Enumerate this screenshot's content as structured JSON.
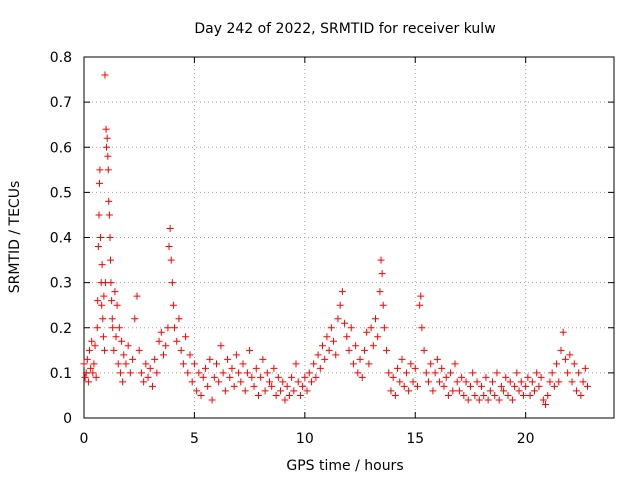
{
  "chart_data": {
    "type": "scatter",
    "title": "Day 242 of 2022, SRMTID for receiver kulw",
    "xlabel": "GPS time / hours",
    "ylabel": "SRMTID / TECUs",
    "xlim": [
      0,
      24
    ],
    "ylim": [
      0,
      0.8
    ],
    "xticks": [
      0,
      5,
      10,
      15,
      20
    ],
    "xtick_labels": [
      "0",
      "5",
      "10",
      "15",
      "20"
    ],
    "yticks": [
      0,
      0.1,
      0.2,
      0.3,
      0.4,
      0.5,
      0.6,
      0.7,
      0.8
    ],
    "ytick_labels": [
      "0",
      "0.1",
      "0.2",
      "0.3",
      "0.4",
      "0.5",
      "0.6",
      "0.7",
      "0.8"
    ],
    "grid": true,
    "marker": "+",
    "color": "#ff0000",
    "series": [
      {
        "name": "SRMTID",
        "points": [
          [
            0.0,
            0.12
          ],
          [
            0.05,
            0.09
          ],
          [
            0.1,
            0.1
          ],
          [
            0.15,
            0.13
          ],
          [
            0.2,
            0.08
          ],
          [
            0.25,
            0.15
          ],
          [
            0.3,
            0.11
          ],
          [
            0.35,
            0.17
          ],
          [
            0.4,
            0.1
          ],
          [
            0.45,
            0.12
          ],
          [
            0.5,
            0.16
          ],
          [
            0.55,
            0.09
          ],
          [
            0.6,
            0.2
          ],
          [
            0.62,
            0.26
          ],
          [
            0.65,
            0.38
          ],
          [
            0.68,
            0.45
          ],
          [
            0.7,
            0.52
          ],
          [
            0.72,
            0.55
          ],
          [
            0.75,
            0.4
          ],
          [
            0.78,
            0.3
          ],
          [
            0.8,
            0.25
          ],
          [
            0.82,
            0.34
          ],
          [
            0.85,
            0.22
          ],
          [
            0.88,
            0.18
          ],
          [
            0.9,
            0.27
          ],
          [
            0.93,
            0.15
          ],
          [
            0.95,
            0.76
          ],
          [
            0.97,
            0.3
          ],
          [
            1.0,
            0.64
          ],
          [
            1.02,
            0.6
          ],
          [
            1.05,
            0.62
          ],
          [
            1.08,
            0.58
          ],
          [
            1.1,
            0.55
          ],
          [
            1.12,
            0.48
          ],
          [
            1.15,
            0.45
          ],
          [
            1.18,
            0.4
          ],
          [
            1.2,
            0.35
          ],
          [
            1.22,
            0.3
          ],
          [
            1.25,
            0.26
          ],
          [
            1.28,
            0.22
          ],
          [
            1.3,
            0.2
          ],
          [
            1.35,
            0.15
          ],
          [
            1.4,
            0.28
          ],
          [
            1.45,
            0.18
          ],
          [
            1.5,
            0.25
          ],
          [
            1.55,
            0.12
          ],
          [
            1.6,
            0.2
          ],
          [
            1.65,
            0.1
          ],
          [
            1.7,
            0.17
          ],
          [
            1.75,
            0.08
          ],
          [
            1.8,
            0.14
          ],
          [
            1.9,
            0.12
          ],
          [
            2.0,
            0.16
          ],
          [
            2.1,
            0.1
          ],
          [
            2.2,
            0.13
          ],
          [
            2.3,
            0.22
          ],
          [
            2.4,
            0.27
          ],
          [
            2.5,
            0.15
          ],
          [
            2.6,
            0.1
          ],
          [
            2.7,
            0.08
          ],
          [
            2.8,
            0.12
          ],
          [
            2.9,
            0.09
          ],
          [
            3.0,
            0.11
          ],
          [
            3.1,
            0.07
          ],
          [
            3.2,
            0.13
          ],
          [
            3.3,
            0.1
          ],
          [
            3.4,
            0.17
          ],
          [
            3.5,
            0.19
          ],
          [
            3.6,
            0.14
          ],
          [
            3.7,
            0.16
          ],
          [
            3.8,
            0.2
          ],
          [
            3.85,
            0.38
          ],
          [
            3.9,
            0.42
          ],
          [
            3.95,
            0.35
          ],
          [
            4.0,
            0.3
          ],
          [
            4.05,
            0.25
          ],
          [
            4.1,
            0.2
          ],
          [
            4.2,
            0.17
          ],
          [
            4.3,
            0.22
          ],
          [
            4.4,
            0.15
          ],
          [
            4.5,
            0.12
          ],
          [
            4.6,
            0.18
          ],
          [
            4.7,
            0.1
          ],
          [
            4.8,
            0.14
          ],
          [
            4.9,
            0.08
          ],
          [
            5.0,
            0.12
          ],
          [
            5.1,
            0.06
          ],
          [
            5.2,
            0.1
          ],
          [
            5.3,
            0.05
          ],
          [
            5.4,
            0.09
          ],
          [
            5.5,
            0.11
          ],
          [
            5.6,
            0.07
          ],
          [
            5.7,
            0.13
          ],
          [
            5.8,
            0.04
          ],
          [
            5.9,
            0.09
          ],
          [
            6.0,
            0.12
          ],
          [
            6.1,
            0.08
          ],
          [
            6.2,
            0.16
          ],
          [
            6.3,
            0.1
          ],
          [
            6.4,
            0.06
          ],
          [
            6.5,
            0.13
          ],
          [
            6.6,
            0.09
          ],
          [
            6.7,
            0.11
          ],
          [
            6.8,
            0.07
          ],
          [
            6.9,
            0.14
          ],
          [
            7.0,
            0.1
          ],
          [
            7.1,
            0.08
          ],
          [
            7.2,
            0.12
          ],
          [
            7.3,
            0.06
          ],
          [
            7.4,
            0.1
          ],
          [
            7.5,
            0.15
          ],
          [
            7.6,
            0.09
          ],
          [
            7.7,
            0.07
          ],
          [
            7.8,
            0.11
          ],
          [
            7.9,
            0.05
          ],
          [
            8.0,
            0.09
          ],
          [
            8.1,
            0.13
          ],
          [
            8.2,
            0.06
          ],
          [
            8.3,
            0.1
          ],
          [
            8.4,
            0.08
          ],
          [
            8.5,
            0.07
          ],
          [
            8.6,
            0.11
          ],
          [
            8.7,
            0.05
          ],
          [
            8.8,
            0.09
          ],
          [
            8.9,
            0.06
          ],
          [
            9.0,
            0.08
          ],
          [
            9.1,
            0.04
          ],
          [
            9.2,
            0.07
          ],
          [
            9.3,
            0.05
          ],
          [
            9.4,
            0.09
          ],
          [
            9.5,
            0.06
          ],
          [
            9.6,
            0.12
          ],
          [
            9.7,
            0.08
          ],
          [
            9.8,
            0.05
          ],
          [
            9.9,
            0.07
          ],
          [
            10.0,
            0.09
          ],
          [
            10.1,
            0.06
          ],
          [
            10.2,
            0.1
          ],
          [
            10.3,
            0.08
          ],
          [
            10.4,
            0.12
          ],
          [
            10.5,
            0.09
          ],
          [
            10.6,
            0.14
          ],
          [
            10.7,
            0.11
          ],
          [
            10.8,
            0.16
          ],
          [
            10.9,
            0.13
          ],
          [
            11.0,
            0.18
          ],
          [
            11.1,
            0.15
          ],
          [
            11.2,
            0.2
          ],
          [
            11.3,
            0.17
          ],
          [
            11.4,
            0.14
          ],
          [
            11.5,
            0.22
          ],
          [
            11.6,
            0.25
          ],
          [
            11.7,
            0.28
          ],
          [
            11.8,
            0.21
          ],
          [
            11.9,
            0.18
          ],
          [
            12.0,
            0.15
          ],
          [
            12.1,
            0.2
          ],
          [
            12.2,
            0.12
          ],
          [
            12.3,
            0.16
          ],
          [
            12.4,
            0.1
          ],
          [
            12.5,
            0.13
          ],
          [
            12.6,
            0.09
          ],
          [
            12.7,
            0.15
          ],
          [
            12.8,
            0.19
          ],
          [
            12.9,
            0.12
          ],
          [
            13.0,
            0.2
          ],
          [
            13.1,
            0.16
          ],
          [
            13.2,
            0.22
          ],
          [
            13.3,
            0.18
          ],
          [
            13.4,
            0.28
          ],
          [
            13.45,
            0.35
          ],
          [
            13.5,
            0.32
          ],
          [
            13.55,
            0.25
          ],
          [
            13.6,
            0.2
          ],
          [
            13.7,
            0.15
          ],
          [
            13.8,
            0.1
          ],
          [
            13.9,
            0.06
          ],
          [
            14.0,
            0.09
          ],
          [
            14.1,
            0.05
          ],
          [
            14.2,
            0.11
          ],
          [
            14.3,
            0.08
          ],
          [
            14.4,
            0.13
          ],
          [
            14.5,
            0.07
          ],
          [
            14.6,
            0.1
          ],
          [
            14.7,
            0.06
          ],
          [
            14.8,
            0.12
          ],
          [
            14.9,
            0.08
          ],
          [
            15.0,
            0.11
          ],
          [
            15.1,
            0.07
          ],
          [
            15.2,
            0.25
          ],
          [
            15.25,
            0.27
          ],
          [
            15.3,
            0.2
          ],
          [
            15.4,
            0.15
          ],
          [
            15.5,
            0.1
          ],
          [
            15.6,
            0.08
          ],
          [
            15.7,
            0.12
          ],
          [
            15.8,
            0.06
          ],
          [
            15.9,
            0.1
          ],
          [
            16.0,
            0.13
          ],
          [
            16.1,
            0.08
          ],
          [
            16.2,
            0.11
          ],
          [
            16.3,
            0.07
          ],
          [
            16.4,
            0.09
          ],
          [
            16.5,
            0.05
          ],
          [
            16.6,
            0.1
          ],
          [
            16.7,
            0.06
          ],
          [
            16.8,
            0.12
          ],
          [
            16.9,
            0.08
          ],
          [
            17.0,
            0.06
          ],
          [
            17.1,
            0.09
          ],
          [
            17.2,
            0.05
          ],
          [
            17.3,
            0.08
          ],
          [
            17.4,
            0.04
          ],
          [
            17.5,
            0.07
          ],
          [
            17.6,
            0.1
          ],
          [
            17.7,
            0.05
          ],
          [
            17.8,
            0.08
          ],
          [
            17.9,
            0.04
          ],
          [
            18.0,
            0.07
          ],
          [
            18.1,
            0.05
          ],
          [
            18.2,
            0.09
          ],
          [
            18.3,
            0.04
          ],
          [
            18.4,
            0.06
          ],
          [
            18.5,
            0.08
          ],
          [
            18.6,
            0.05
          ],
          [
            18.7,
            0.1
          ],
          [
            18.8,
            0.04
          ],
          [
            18.9,
            0.07
          ],
          [
            19.0,
            0.06
          ],
          [
            19.1,
            0.09
          ],
          [
            19.2,
            0.05
          ],
          [
            19.3,
            0.08
          ],
          [
            19.4,
            0.04
          ],
          [
            19.5,
            0.07
          ],
          [
            19.6,
            0.1
          ],
          [
            19.7,
            0.06
          ],
          [
            19.8,
            0.08
          ],
          [
            19.9,
            0.05
          ],
          [
            20.0,
            0.07
          ],
          [
            20.1,
            0.09
          ],
          [
            20.2,
            0.05
          ],
          [
            20.3,
            0.08
          ],
          [
            20.4,
            0.06
          ],
          [
            20.5,
            0.1
          ],
          [
            20.6,
            0.07
          ],
          [
            20.7,
            0.09
          ],
          [
            20.8,
            0.04
          ],
          [
            20.9,
            0.03
          ],
          [
            21.0,
            0.05
          ],
          [
            21.1,
            0.08
          ],
          [
            21.2,
            0.1
          ],
          [
            21.3,
            0.07
          ],
          [
            21.4,
            0.12
          ],
          [
            21.5,
            0.08
          ],
          [
            21.6,
            0.15
          ],
          [
            21.7,
            0.19
          ],
          [
            21.8,
            0.13
          ],
          [
            21.9,
            0.1
          ],
          [
            22.0,
            0.14
          ],
          [
            22.1,
            0.08
          ],
          [
            22.2,
            0.12
          ],
          [
            22.3,
            0.06
          ],
          [
            22.4,
            0.1
          ],
          [
            22.5,
            0.05
          ],
          [
            22.6,
            0.08
          ],
          [
            22.7,
            0.11
          ],
          [
            22.8,
            0.07
          ]
        ]
      }
    ]
  }
}
